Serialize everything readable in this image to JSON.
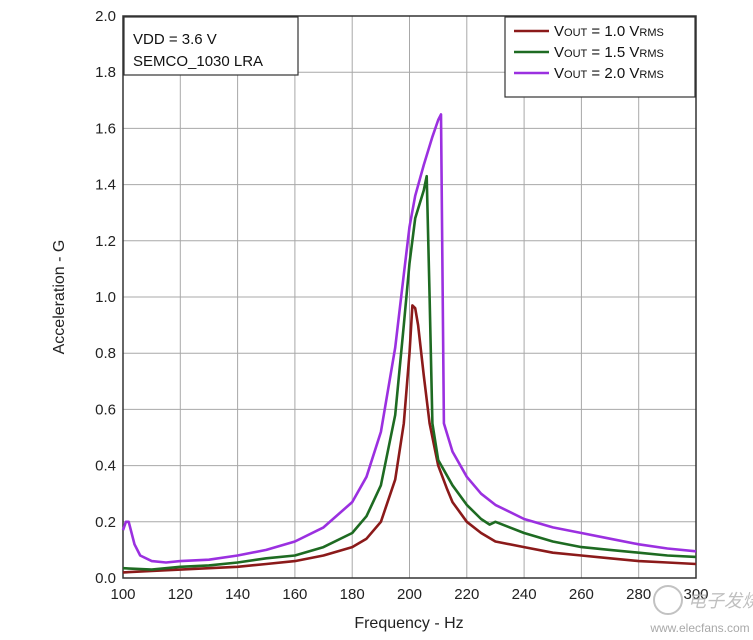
{
  "chart_data": {
    "type": "line",
    "title": "",
    "xlabel": "Frequency - Hz",
    "ylabel": "Acceleration - G",
    "xlim": [
      100,
      300
    ],
    "ylim": [
      0,
      2.0
    ],
    "x_ticks": [
      "100",
      "120",
      "140",
      "160",
      "180",
      "200",
      "220",
      "240",
      "260",
      "280",
      "300"
    ],
    "y_ticks": [
      "0.0",
      "0.2",
      "0.4",
      "0.6",
      "0.8",
      "1.0",
      "1.2",
      "1.4",
      "1.6",
      "1.8",
      "2.0"
    ],
    "grid": true,
    "annotation": [
      "VDD = 3.6 V",
      "SEMCO_1030 LRA"
    ],
    "legend_position": "top-right",
    "series": [
      {
        "name": "VOUT = 1.0 VRMS",
        "label_main": "V",
        "label_sub1": "OUT",
        "label_mid": " = 1.0 V",
        "label_sub2": "RMS",
        "color": "#8b1a1a",
        "points": [
          [
            100,
            0.02
          ],
          [
            110,
            0.025
          ],
          [
            120,
            0.03
          ],
          [
            130,
            0.035
          ],
          [
            140,
            0.04
          ],
          [
            150,
            0.05
          ],
          [
            160,
            0.06
          ],
          [
            170,
            0.08
          ],
          [
            180,
            0.11
          ],
          [
            185,
            0.14
          ],
          [
            190,
            0.2
          ],
          [
            195,
            0.35
          ],
          [
            198,
            0.55
          ],
          [
            200,
            0.8
          ],
          [
            201,
            0.97
          ],
          [
            202,
            0.96
          ],
          [
            203,
            0.9
          ],
          [
            205,
            0.72
          ],
          [
            207,
            0.55
          ],
          [
            210,
            0.4
          ],
          [
            213,
            0.32
          ],
          [
            215,
            0.27
          ],
          [
            220,
            0.2
          ],
          [
            225,
            0.16
          ],
          [
            230,
            0.13
          ],
          [
            240,
            0.11
          ],
          [
            250,
            0.09
          ],
          [
            260,
            0.08
          ],
          [
            270,
            0.07
          ],
          [
            280,
            0.06
          ],
          [
            290,
            0.055
          ],
          [
            300,
            0.05
          ]
        ]
      },
      {
        "name": "VOUT = 1.5 VRMS",
        "label_main": "V",
        "label_sub1": "OUT",
        "label_mid": " = 1.5 V",
        "label_sub2": "RMS",
        "color": "#1e6b22",
        "points": [
          [
            100,
            0.035
          ],
          [
            110,
            0.03
          ],
          [
            120,
            0.04
          ],
          [
            130,
            0.045
          ],
          [
            140,
            0.055
          ],
          [
            150,
            0.07
          ],
          [
            160,
            0.08
          ],
          [
            170,
            0.11
          ],
          [
            180,
            0.16
          ],
          [
            185,
            0.22
          ],
          [
            190,
            0.33
          ],
          [
            195,
            0.58
          ],
          [
            198,
            0.9
          ],
          [
            200,
            1.12
          ],
          [
            202,
            1.28
          ],
          [
            205,
            1.38
          ],
          [
            206,
            1.43
          ],
          [
            207,
            1.0
          ],
          [
            208,
            0.55
          ],
          [
            210,
            0.42
          ],
          [
            215,
            0.33
          ],
          [
            220,
            0.26
          ],
          [
            225,
            0.21
          ],
          [
            228,
            0.19
          ],
          [
            230,
            0.2
          ],
          [
            240,
            0.16
          ],
          [
            250,
            0.13
          ],
          [
            260,
            0.11
          ],
          [
            270,
            0.1
          ],
          [
            280,
            0.09
          ],
          [
            290,
            0.08
          ],
          [
            300,
            0.075
          ]
        ]
      },
      {
        "name": "VOUT = 2.0 VRMS",
        "label_main": "V",
        "label_sub1": "OUT",
        "label_mid": " = 2.0 V",
        "label_sub2": "RMS",
        "color": "#9b30e0",
        "points": [
          [
            100,
            0.17
          ],
          [
            101,
            0.2
          ],
          [
            102,
            0.2
          ],
          [
            104,
            0.12
          ],
          [
            106,
            0.08
          ],
          [
            110,
            0.06
          ],
          [
            115,
            0.055
          ],
          [
            120,
            0.06
          ],
          [
            130,
            0.065
          ],
          [
            140,
            0.08
          ],
          [
            150,
            0.1
          ],
          [
            160,
            0.13
          ],
          [
            170,
            0.18
          ],
          [
            180,
            0.27
          ],
          [
            185,
            0.36
          ],
          [
            190,
            0.52
          ],
          [
            195,
            0.82
          ],
          [
            198,
            1.08
          ],
          [
            200,
            1.25
          ],
          [
            202,
            1.36
          ],
          [
            205,
            1.47
          ],
          [
            208,
            1.57
          ],
          [
            210,
            1.63
          ],
          [
            211,
            1.65
          ],
          [
            212,
            0.55
          ],
          [
            215,
            0.45
          ],
          [
            220,
            0.36
          ],
          [
            225,
            0.3
          ],
          [
            230,
            0.26
          ],
          [
            240,
            0.21
          ],
          [
            250,
            0.18
          ],
          [
            260,
            0.16
          ],
          [
            270,
            0.14
          ],
          [
            280,
            0.12
          ],
          [
            290,
            0.105
          ],
          [
            300,
            0.095
          ]
        ]
      }
    ]
  },
  "watermark": {
    "logo_text": "电子发烧友",
    "url": "www.elecfans.com"
  }
}
